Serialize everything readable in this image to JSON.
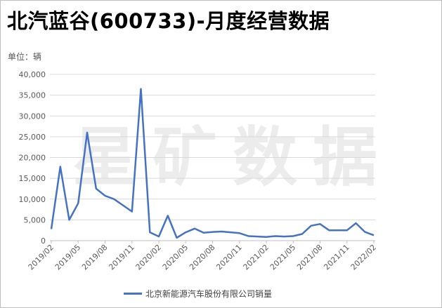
{
  "title": "北汽蓝谷(600733)-月度经营数据",
  "unit_label": "单位：辆",
  "watermark": "星矿数据",
  "colors": {
    "series": "#4472c4",
    "grid": "#d9d9d9",
    "axis": "#bfbfbf"
  },
  "chart_data": {
    "type": "line",
    "title": "北汽蓝谷(600733)-月度经营数据",
    "ylabel": "单位：辆",
    "ylim": [
      0,
      40000
    ],
    "y_ticks": [
      "0",
      "5,000",
      "10,000",
      "15,000",
      "20,000",
      "25,000",
      "30,000",
      "35,000",
      "40,000"
    ],
    "x_tick_labels": [
      "2019/02",
      "2019/05",
      "2019/08",
      "2019/11",
      "2020/02",
      "2020/05",
      "2020/08",
      "2020/11",
      "2021/02",
      "2021/05",
      "2021/08",
      "2021/11",
      "2022/02"
    ],
    "x": [
      "2019/02",
      "2019/03",
      "2019/04",
      "2019/05",
      "2019/06",
      "2019/07",
      "2019/08",
      "2019/09",
      "2019/10",
      "2019/11",
      "2019/12",
      "2020/01",
      "2020/02",
      "2020/03",
      "2020/04",
      "2020/05",
      "2020/06",
      "2020/07",
      "2020/08",
      "2020/09",
      "2020/10",
      "2020/11",
      "2020/12",
      "2021/01",
      "2021/02",
      "2021/03",
      "2021/04",
      "2021/05",
      "2021/06",
      "2021/07",
      "2021/08",
      "2021/09",
      "2021/10",
      "2021/11",
      "2021/12",
      "2022/01",
      "2022/02"
    ],
    "grid": true,
    "legend_position": "bottom",
    "series": [
      {
        "name": "北京新能源汽车股份有限公司销量",
        "values": [
          2800,
          17800,
          5000,
          9000,
          26000,
          12500,
          10800,
          10000,
          8500,
          7000,
          36500,
          2000,
          1000,
          6000,
          700,
          2000,
          2900,
          1900,
          2100,
          2200,
          2000,
          1800,
          1100,
          1000,
          900,
          1100,
          1000,
          1100,
          1600,
          3600,
          4000,
          2500,
          2500,
          2500,
          4200,
          2100,
          1300
        ]
      }
    ]
  }
}
